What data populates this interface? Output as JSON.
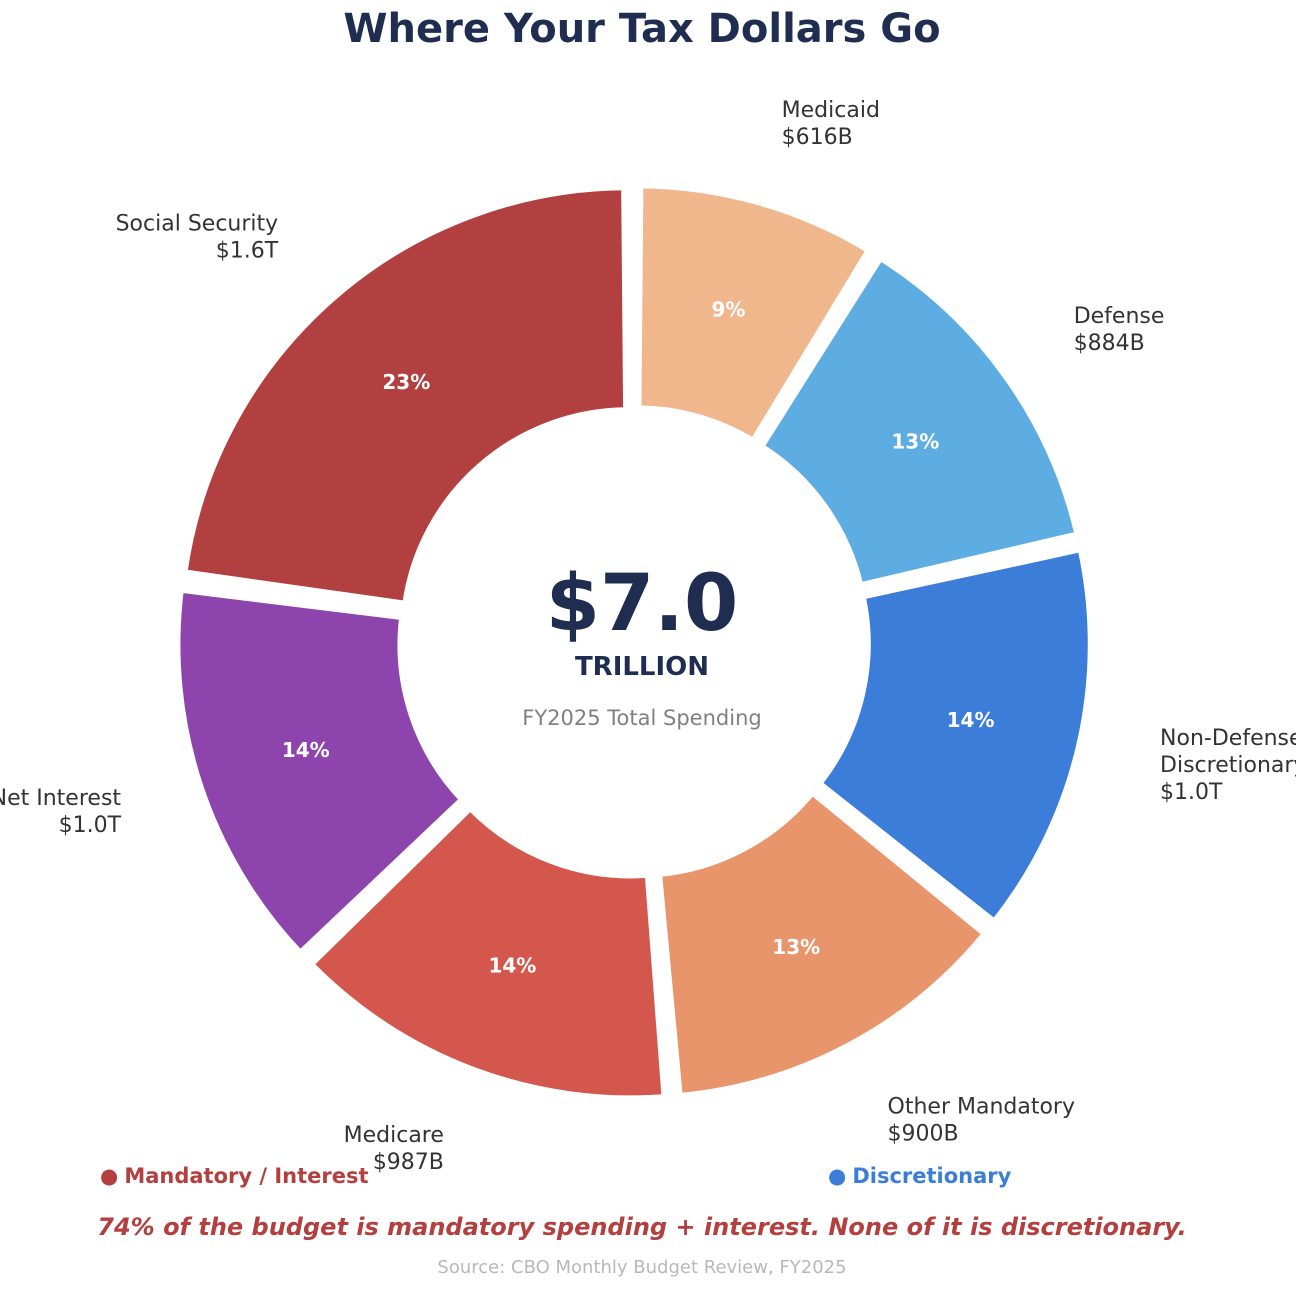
{
  "title": "Where Your Tax Dollars Go",
  "center": {
    "amount": "$7.0",
    "unit": "TRILLION",
    "caption": "FY2025 Total Spending"
  },
  "legend": [
    {
      "label": "Mandatory / Interest",
      "marker": "●",
      "color": "#b33f3f"
    },
    {
      "label": "Discretionary",
      "marker": "●",
      "color": "#3b7dd8"
    }
  ],
  "takeaway": "74% of the budget is mandatory spending + interest. None of it is discretionary.",
  "source": "Source: CBO Monthly Budget Review, FY2025",
  "chart_data": {
    "type": "pie",
    "variant": "donut",
    "total": 7.0,
    "total_unit": "trillion USD",
    "slices": [
      {
        "name": "Medicaid",
        "amount_label": "$616B",
        "value": 616,
        "pct_label": "9%",
        "color": "#f0b78d"
      },
      {
        "name": "Defense",
        "amount_label": "$884B",
        "value": 884,
        "pct_label": "13%",
        "color": "#5dace2"
      },
      {
        "name": "Non-Defense Discretionary",
        "amount_label": "$1.0T",
        "value": 1000,
        "pct_label": "14%",
        "color": "#3b7dd8"
      },
      {
        "name": "Other Mandatory",
        "amount_label": "$900B",
        "value": 900,
        "pct_label": "13%",
        "color": "#e8956b"
      },
      {
        "name": "Medicare",
        "amount_label": "$987B",
        "value": 987,
        "pct_label": "14%",
        "color": "#d4574d"
      },
      {
        "name": "Net Interest",
        "amount_label": "$1.0T",
        "value": 1000,
        "pct_label": "14%",
        "color": "#8e44ad"
      },
      {
        "name": "Social Security",
        "amount_label": "$1.6T",
        "value": 1600,
        "pct_label": "23%",
        "color": "#b34040"
      }
    ],
    "value_unit": "billion USD",
    "direction": "clockwise from top",
    "legend_position": "bottom"
  }
}
